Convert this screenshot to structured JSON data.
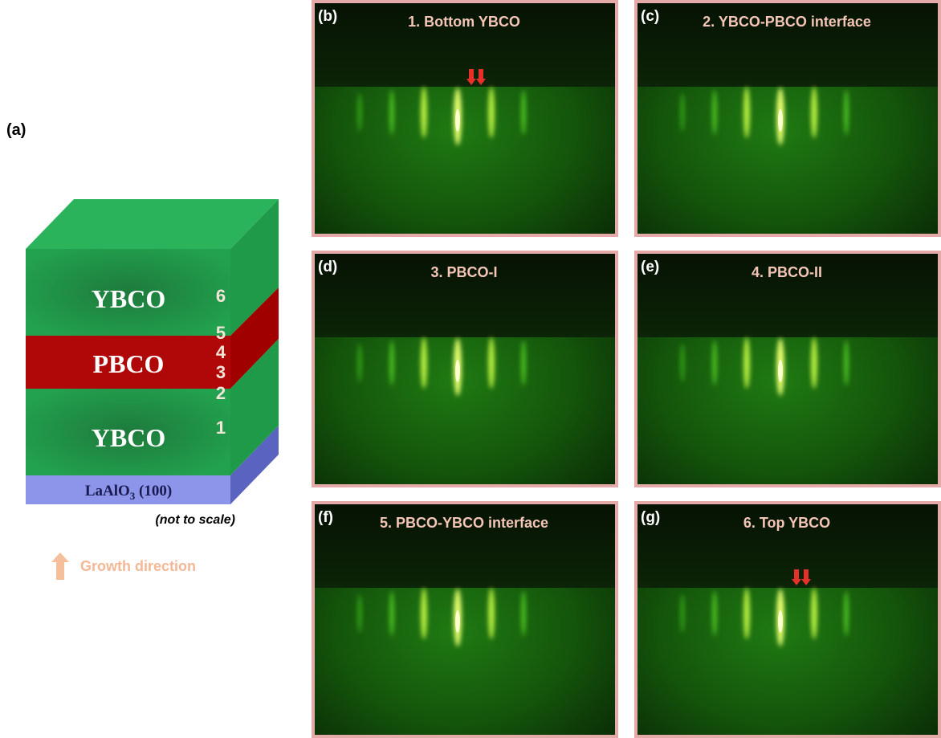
{
  "figure": {
    "panel_a": {
      "label": "(a)",
      "layers": [
        "YBCO",
        "PBCO",
        "YBCO"
      ],
      "substrate": {
        "text": "LaAlO",
        "subscript": "3",
        "suffix": " (100)"
      },
      "stage_numbers": [
        "6",
        "5",
        "4",
        "3",
        "2",
        "1"
      ],
      "note": "(not to scale)",
      "growth_direction": "Growth direction"
    },
    "panels": [
      {
        "label": "(b)",
        "title": "1. Bottom YBCO"
      },
      {
        "label": "(c)",
        "title": "2. YBCO-PBCO interface"
      },
      {
        "label": "(d)",
        "title": "3. PBCO-I"
      },
      {
        "label": "(e)",
        "title": "4. PBCO-II"
      },
      {
        "label": "(f)",
        "title": "5. PBCO-YBCO interface"
      },
      {
        "label": "(g)",
        "title": "6. Top YBCO"
      }
    ]
  }
}
